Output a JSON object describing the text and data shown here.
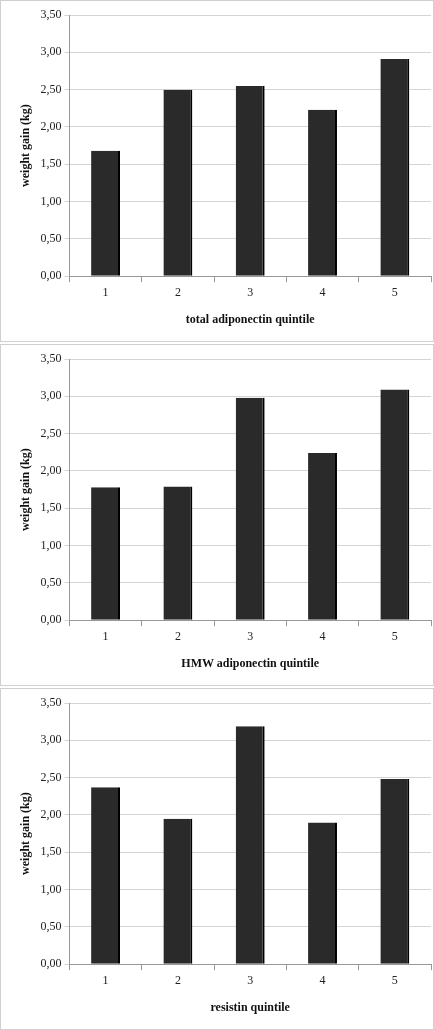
{
  "chart_data": [
    {
      "type": "bar",
      "xlabel": "total adiponectin quintile",
      "ylabel": "weight gain (kg)",
      "categories": [
        "1",
        "2",
        "3",
        "4",
        "5"
      ],
      "values": [
        1.68,
        2.5,
        2.55,
        2.23,
        2.91
      ],
      "color": "#2a2a2a",
      "ylim": [
        0,
        3.5
      ],
      "yticks": [
        {
          "value": 0,
          "label": "0,00"
        },
        {
          "value": 0.5,
          "label": "0,50"
        },
        {
          "value": 1,
          "label": "1,00"
        },
        {
          "value": 1.5,
          "label": "1,50"
        },
        {
          "value": 2,
          "label": "2,00"
        },
        {
          "value": 2.5,
          "label": "2,50"
        },
        {
          "value": 3,
          "label": "3,00"
        },
        {
          "value": 3.5,
          "label": "3,50"
        }
      ],
      "grid": "y",
      "legend": false
    },
    {
      "type": "bar",
      "xlabel": "HMW adiponectin quintile",
      "ylabel": "weight gain (kg)",
      "categories": [
        "1",
        "2",
        "3",
        "4",
        "5"
      ],
      "values": [
        1.78,
        1.79,
        2.98,
        2.24,
        3.09
      ],
      "color": "#2a2a2a",
      "ylim": [
        0,
        3.5
      ],
      "yticks": [
        {
          "value": 0,
          "label": "0,00"
        },
        {
          "value": 0.5,
          "label": "0,50"
        },
        {
          "value": 1,
          "label": "1,00"
        },
        {
          "value": 1.5,
          "label": "1,50"
        },
        {
          "value": 2,
          "label": "2,00"
        },
        {
          "value": 2.5,
          "label": "2,50"
        },
        {
          "value": 3,
          "label": "3,00"
        },
        {
          "value": 3.5,
          "label": "3,50"
        }
      ],
      "grid": "y",
      "legend": false
    },
    {
      "type": "bar",
      "xlabel": "resistin quintile",
      "ylabel": "weight gain (kg)",
      "categories": [
        "1",
        "2",
        "3",
        "4",
        "5"
      ],
      "values": [
        2.37,
        1.95,
        3.19,
        1.9,
        2.48
      ],
      "color": "#2a2a2a",
      "ylim": [
        0,
        3.5
      ],
      "yticks": [
        {
          "value": 0,
          "label": "0,00"
        },
        {
          "value": 0.5,
          "label": "0,50"
        },
        {
          "value": 1,
          "label": "1,00"
        },
        {
          "value": 1.5,
          "label": "1,50"
        },
        {
          "value": 2,
          "label": "2,00"
        },
        {
          "value": 2.5,
          "label": "2,50"
        },
        {
          "value": 3,
          "label": "3,00"
        },
        {
          "value": 3.5,
          "label": "3,50"
        }
      ],
      "grid": "y",
      "legend": false
    }
  ]
}
